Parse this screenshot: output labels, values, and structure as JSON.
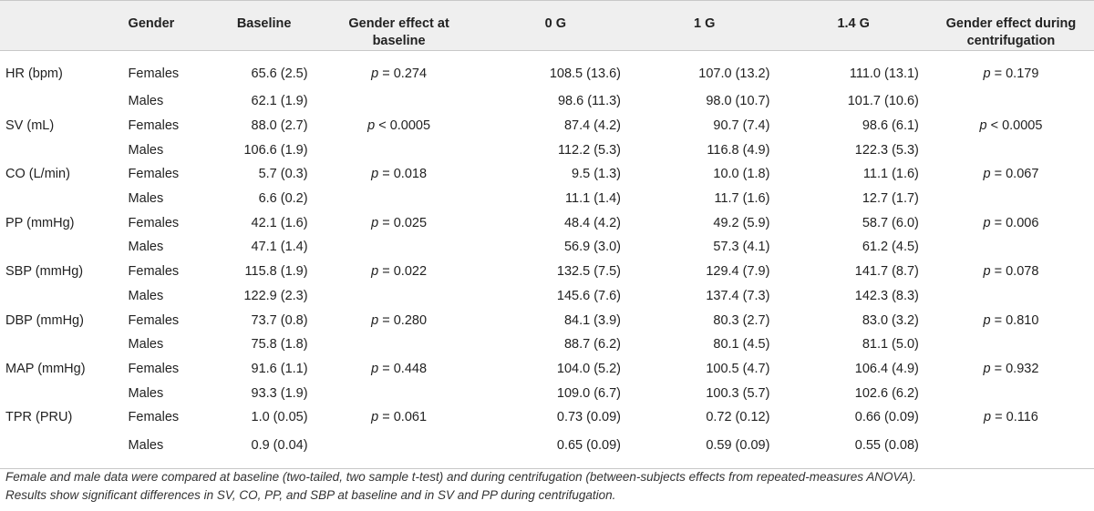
{
  "headers": {
    "variable": "",
    "gender": "Gender",
    "baseline": "Baseline",
    "gender_effect_baseline": "Gender effect at baseline",
    "g0": "0 G",
    "g1": "1 G",
    "g14": "1.4 G",
    "gender_effect_during": "Gender effect during centrifugation"
  },
  "rows": [
    {
      "variable": "HR (bpm)",
      "gender": "Females",
      "baseline": "65.6 (2.5)",
      "p_base_sym": "p",
      "p_base_rest": " = 0.274",
      "g0": "108.5 (13.6)",
      "g1": "107.0 (13.2)",
      "g14": "111.0 (13.1)",
      "p_cent_sym": "p",
      "p_cent_rest": " = 0.179"
    },
    {
      "variable": "",
      "gender": "Males",
      "baseline": "62.1 (1.9)",
      "p_base_sym": "",
      "p_base_rest": "",
      "g0": "98.6 (11.3)",
      "g1": "98.0 (10.7)",
      "g14": "101.7 (10.6)",
      "p_cent_sym": "",
      "p_cent_rest": ""
    },
    {
      "variable": "SV (mL)",
      "gender": "Females",
      "baseline": "88.0 (2.7)",
      "p_base_sym": "p",
      "p_base_rest": " < 0.0005",
      "g0": "87.4 (4.2)",
      "g1": "90.7 (7.4)",
      "g14": "98.6 (6.1)",
      "p_cent_sym": "p",
      "p_cent_rest": " < 0.0005"
    },
    {
      "variable": "",
      "gender": "Males",
      "baseline": "106.6 (1.9)",
      "p_base_sym": "",
      "p_base_rest": "",
      "g0": "112.2 (5.3)",
      "g1": "116.8 (4.9)",
      "g14": "122.3 (5.3)",
      "p_cent_sym": "",
      "p_cent_rest": ""
    },
    {
      "variable": "CO (L/min)",
      "gender": "Females",
      "baseline": "5.7 (0.3)",
      "p_base_sym": "p",
      "p_base_rest": " = 0.018",
      "g0": "9.5 (1.3)",
      "g1": "10.0 (1.8)",
      "g14": "11.1 (1.6)",
      "p_cent_sym": "p",
      "p_cent_rest": " = 0.067"
    },
    {
      "variable": "",
      "gender": "Males",
      "baseline": "6.6 (0.2)",
      "p_base_sym": "",
      "p_base_rest": "",
      "g0": "11.1 (1.4)",
      "g1": "11.7 (1.6)",
      "g14": "12.7 (1.7)",
      "p_cent_sym": "",
      "p_cent_rest": ""
    },
    {
      "variable": "PP (mmHg)",
      "gender": "Females",
      "baseline": "42.1 (1.6)",
      "p_base_sym": "p",
      "p_base_rest": " = 0.025",
      "g0": "48.4 (4.2)",
      "g1": "49.2 (5.9)",
      "g14": "58.7 (6.0)",
      "p_cent_sym": "p",
      "p_cent_rest": " = 0.006"
    },
    {
      "variable": "",
      "gender": "Males",
      "baseline": "47.1 (1.4)",
      "p_base_sym": "",
      "p_base_rest": "",
      "g0": "56.9 (3.0)",
      "g1": "57.3 (4.1)",
      "g14": "61.2 (4.5)",
      "p_cent_sym": "",
      "p_cent_rest": ""
    },
    {
      "variable": "SBP (mmHg)",
      "gender": "Females",
      "baseline": "115.8 (1.9)",
      "p_base_sym": "p",
      "p_base_rest": " = 0.022",
      "g0": "132.5 (7.5)",
      "g1": "129.4 (7.9)",
      "g14": "141.7 (8.7)",
      "p_cent_sym": "p",
      "p_cent_rest": " = 0.078"
    },
    {
      "variable": "",
      "gender": "Males",
      "baseline": "122.9 (2.3)",
      "p_base_sym": "",
      "p_base_rest": "",
      "g0": "145.6 (7.6)",
      "g1": "137.4 (7.3)",
      "g14": "142.3 (8.3)",
      "p_cent_sym": "",
      "p_cent_rest": ""
    },
    {
      "variable": "DBP (mmHg)",
      "gender": "Females",
      "baseline": "73.7 (0.8)",
      "p_base_sym": "p",
      "p_base_rest": " = 0.280",
      "g0": "84.1 (3.9)",
      "g1": "80.3 (2.7)",
      "g14": "83.0 (3.2)",
      "p_cent_sym": "p",
      "p_cent_rest": " = 0.810"
    },
    {
      "variable": "",
      "gender": "Males",
      "baseline": "75.8 (1.8)",
      "p_base_sym": "",
      "p_base_rest": "",
      "g0": "88.7 (6.2)",
      "g1": "80.1 (4.5)",
      "g14": "81.1 (5.0)",
      "p_cent_sym": "",
      "p_cent_rest": ""
    },
    {
      "variable": "MAP (mmHg)",
      "gender": "Females",
      "baseline": "91.6 (1.1)",
      "p_base_sym": "p",
      "p_base_rest": " = 0.448",
      "g0": "104.0 (5.2)",
      "g1": "100.5 (4.7)",
      "g14": "106.4 (4.9)",
      "p_cent_sym": "p",
      "p_cent_rest": " = 0.932"
    },
    {
      "variable": "",
      "gender": "Males",
      "baseline": "93.3 (1.9)",
      "p_base_sym": "",
      "p_base_rest": "",
      "g0": "109.0 (6.7)",
      "g1": "100.3 (5.7)",
      "g14": "102.6 (6.2)",
      "p_cent_sym": "",
      "p_cent_rest": ""
    },
    {
      "variable": "TPR (PRU)",
      "gender": "Females",
      "baseline": "1.0 (0.05)",
      "p_base_sym": "p",
      "p_base_rest": " = 0.061",
      "g0": "0.73 (0.09)",
      "g1": "0.72 (0.12)",
      "g14": "0.66 (0.09)",
      "p_cent_sym": "p",
      "p_cent_rest": " = 0.116"
    },
    {
      "variable": "",
      "gender": "Males",
      "baseline": "0.9 (0.04)",
      "p_base_sym": "",
      "p_base_rest": "",
      "g0": "0.65 (0.09)",
      "g1": "0.59 (0.09)",
      "g14": "0.55 (0.08)",
      "p_cent_sym": "",
      "p_cent_rest": ""
    }
  ],
  "footnote": {
    "line1": "Female and male data were compared at baseline (two-tailed, two sample t-test) and during centrifugation (between-subjects effects from repeated-measures ANOVA).",
    "line2": "Results show significant differences in SV, CO, PP, and SBP at baseline and in SV and PP during centrifugation."
  }
}
